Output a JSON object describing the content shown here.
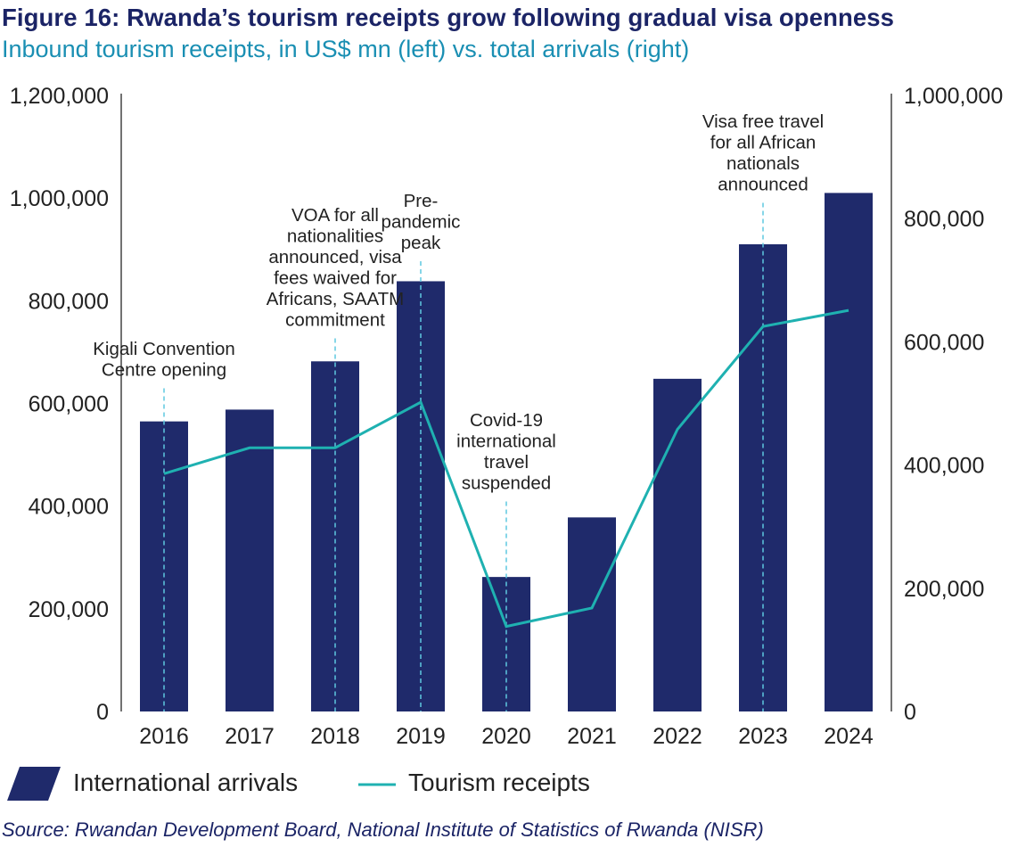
{
  "header": {
    "title": "Figure 16: Rwanda’s tourism receipts grow following gradual visa openness",
    "subtitle": "Inbound tourism receipts, in US$ mn (left) vs. total arrivals (right)"
  },
  "source": "Source: Rwandan Development Board, National Institute of Statistics of Rwanda (NISR)",
  "colors": {
    "bar": "#1f2a6b",
    "line": "#1fb1b1",
    "annotation_line": "#5ec8e0",
    "title": "#1b2466",
    "subtitle": "#1a8fb3",
    "axis": "#444444",
    "text": "#222222"
  },
  "chart_data": {
    "type": "bar",
    "categories": [
      "2016",
      "2017",
      "2018",
      "2019",
      "2020",
      "2021",
      "2022",
      "2023",
      "2024"
    ],
    "series": [
      {
        "name": "International arrivals",
        "type": "bar",
        "axis": "left",
        "values": [
          565000,
          588000,
          682000,
          838000,
          262000,
          378000,
          648000,
          910000,
          1010000
        ]
      },
      {
        "name": "Tourism receipts",
        "type": "line",
        "axis": "right",
        "values": [
          386000,
          428000,
          428000,
          502000,
          138000,
          168000,
          458000,
          625000,
          651000
        ]
      }
    ],
    "y_left": {
      "min": 0,
      "max": 1200000,
      "ticks": [
        0,
        200000,
        400000,
        600000,
        800000,
        1000000,
        1200000
      ],
      "tick_labels": [
        "0",
        "200,000",
        "400,000",
        "600,000",
        "800,000",
        "1,000,000",
        "1,200,000"
      ]
    },
    "y_right": {
      "min": 0,
      "max": 1000000,
      "ticks": [
        0,
        200000,
        400000,
        600000,
        800000,
        1000000
      ],
      "tick_labels": [
        "0",
        "200,000",
        "400,000",
        "600,000",
        "800,000",
        "1,000,000"
      ]
    },
    "annotations": [
      {
        "category": "2016",
        "lines": [
          "Kigali Convention",
          "Centre opening"
        ]
      },
      {
        "category": "2018",
        "lines": [
          "VOA for all",
          "nationalities",
          "announced, visa",
          "fees waived for",
          "Africans, SAATM",
          "commitment"
        ]
      },
      {
        "category": "2019",
        "lines": [
          "Pre-",
          "pandemic",
          "peak"
        ]
      },
      {
        "category": "2020",
        "lines": [
          "Covid-19",
          "international",
          "travel",
          "suspended"
        ]
      },
      {
        "category": "2023",
        "lines": [
          "Visa free travel",
          "for all African",
          "nationals",
          "announced"
        ]
      }
    ],
    "legend": [
      "International arrivals",
      "Tourism receipts"
    ],
    "legend_position": "bottom-left"
  }
}
